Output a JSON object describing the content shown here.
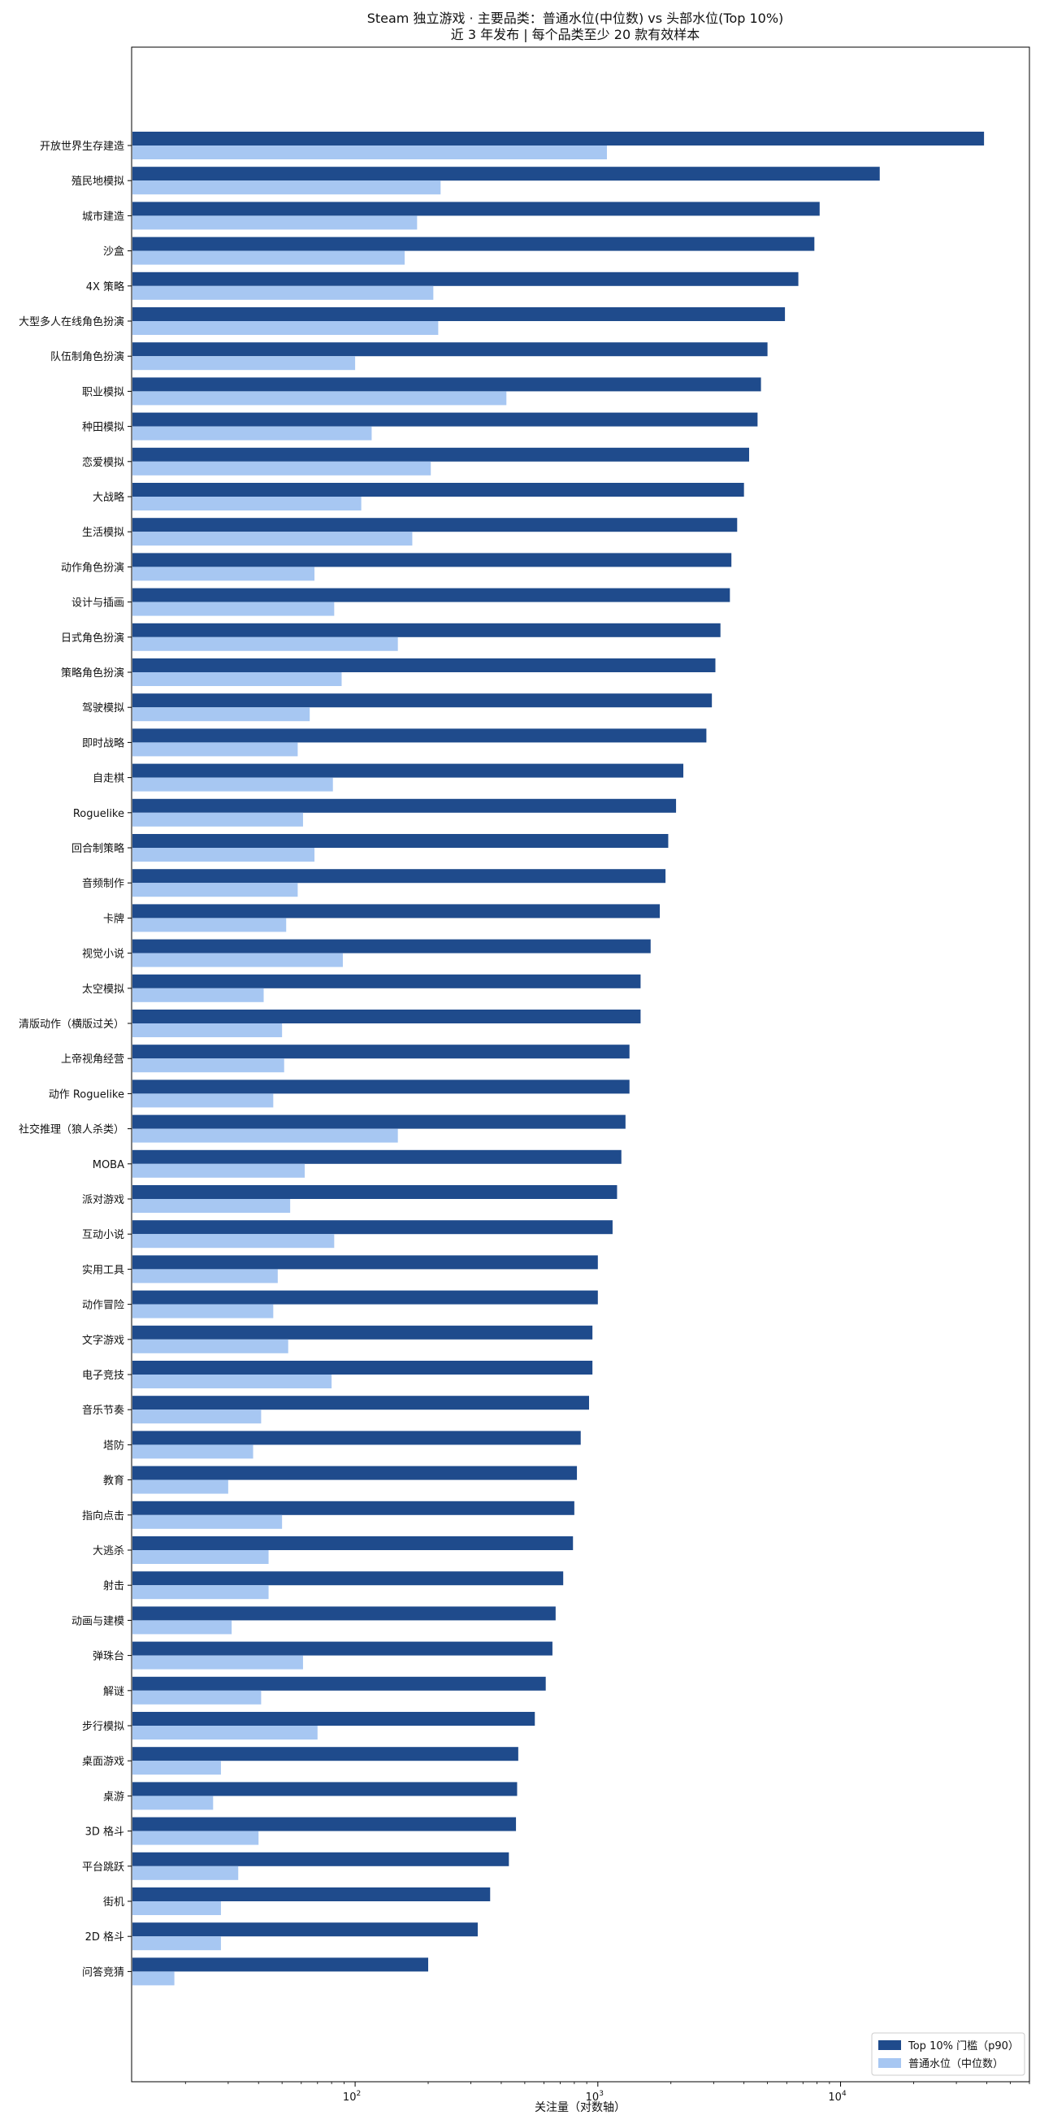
{
  "chart_data": {
    "type": "bar",
    "orientation": "horizontal",
    "title": "Steam 独立游戏 · 主要品类：普通水位(中位数) vs 头部水位(Top 10%)",
    "subtitle": "近 3 年发布 | 每个品类至少 20 款有效样本",
    "xlabel": "关注量（对数轴）",
    "ylabel": "",
    "xscale": "log",
    "xlim": [
      12,
      60000
    ],
    "xticks": [
      {
        "value": 100,
        "base": "10",
        "exp": "2"
      },
      {
        "value": 1000,
        "base": "10",
        "exp": "3"
      },
      {
        "value": 10000,
        "base": "10",
        "exp": "4"
      }
    ],
    "grid": false,
    "legend_position": "bottom-right",
    "categories": [
      "开放世界生存建造",
      "殖民地模拟",
      "城市建造",
      "沙盒",
      "4X 策略",
      "大型多人在线角色扮演",
      "队伍制角色扮演",
      "职业模拟",
      "种田模拟",
      "恋爱模拟",
      "大战略",
      "生活模拟",
      "动作角色扮演",
      "设计与插画",
      "日式角色扮演",
      "策略角色扮演",
      "驾驶模拟",
      "即时战略",
      "自走棋",
      "Roguelike",
      "回合制策略",
      "音频制作",
      "卡牌",
      "视觉小说",
      "太空模拟",
      "清版动作（横版过关）",
      "上帝视角经营",
      "动作 Roguelike",
      "社交推理（狼人杀类）",
      "MOBA",
      "派对游戏",
      "互动小说",
      "实用工具",
      "动作冒险",
      "文字游戏",
      "电子竞技",
      "音乐节奏",
      "塔防",
      "教育",
      "指向点击",
      "大逃杀",
      "射击",
      "动画与建模",
      "弹珠台",
      "解谜",
      "步行模拟",
      "桌面游戏",
      "桌游",
      "3D 格斗",
      "平台跳跃",
      "街机",
      "2D 格斗",
      "问答竞猜"
    ],
    "series": [
      {
        "name": "Top 10% 门槛（p90）",
        "color": "#1f4b8c",
        "values": [
          39000,
          14500,
          8200,
          7800,
          6700,
          5900,
          5000,
          4700,
          4550,
          4200,
          4000,
          3750,
          3550,
          3500,
          3200,
          3050,
          2950,
          2800,
          2250,
          2100,
          1950,
          1900,
          1800,
          1650,
          1500,
          1500,
          1350,
          1350,
          1300,
          1250,
          1200,
          1150,
          1000,
          1000,
          950,
          950,
          920,
          850,
          820,
          800,
          790,
          720,
          670,
          650,
          610,
          550,
          470,
          465,
          460,
          430,
          360,
          320,
          200
        ]
      },
      {
        "name": "普通水位（中位数）",
        "color": "#a7c7f2",
        "values": [
          1090,
          225,
          180,
          160,
          210,
          220,
          100,
          420,
          117,
          205,
          106,
          172,
          68,
          82,
          150,
          88,
          65,
          58,
          81,
          61,
          68,
          58,
          52,
          89,
          42,
          50,
          51,
          46,
          150,
          62,
          54,
          82,
          48,
          46,
          53,
          80,
          41,
          38,
          30,
          50,
          44,
          44,
          31,
          61,
          41,
          70,
          28,
          26,
          40,
          33,
          28,
          28,
          18
        ]
      }
    ]
  }
}
